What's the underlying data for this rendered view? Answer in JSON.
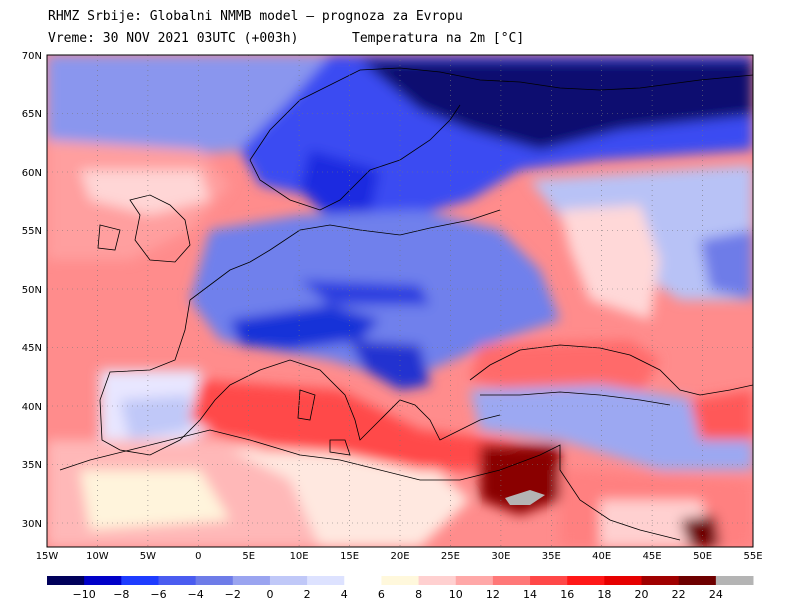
{
  "title": {
    "line1": "RHMZ Srbije: Globalni NMMB model — prognoza za Evropu",
    "line2_left": "Vreme: 30 NOV 2021 03UTC (+003h)",
    "line2_right": "Temperatura na 2m [°C]"
  },
  "axes": {
    "lat_labels": [
      "70N",
      "65N",
      "60N",
      "55N",
      "50N",
      "45N",
      "40N",
      "35N",
      "30N"
    ],
    "lon_labels": [
      "15W",
      "10W",
      "5W",
      "0",
      "5E",
      "10E",
      "15E",
      "20E",
      "25E",
      "30E",
      "35E",
      "40E",
      "45E",
      "50E",
      "55E"
    ]
  },
  "colorbar": {
    "ticks": [
      "−10",
      "−8",
      "−6",
      "−4",
      "−2",
      "0",
      "2",
      "4",
      "6",
      "8",
      "10",
      "12",
      "14",
      "16",
      "18",
      "20",
      "22",
      "24"
    ],
    "colors": [
      "#00005a",
      "#0000c8",
      "#1e3cff",
      "#4a5cf0",
      "#6e7ce8",
      "#9aa4f0",
      "#c0c8f8",
      "#dde2ff",
      "#ffffff",
      "#fff8dc",
      "#ffd0d0",
      "#ffa8a8",
      "#ff7878",
      "#ff4848",
      "#ff1818",
      "#e60000",
      "#a00000",
      "#6e0000",
      "#b4b4b4"
    ]
  },
  "colors": {
    "sea_warm": "#ff7878",
    "land_cold": "#6e7ce8",
    "north_cold": "#00005a"
  }
}
